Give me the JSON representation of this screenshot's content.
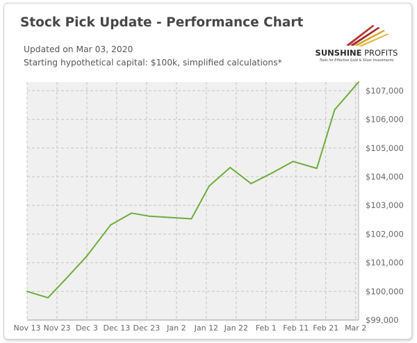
{
  "header": {
    "title": "Stock Pick Update - Performance Chart",
    "updated": "Updated on Mar 03, 2020",
    "capital_note": "Starting hypothetical capital: $100k, simplified calculations*"
  },
  "logo": {
    "brand_bold": "SUNSHINE",
    "brand_light": " PROFITS",
    "tagline": "Tools for Effective Gold & Silver Investments",
    "colors": {
      "red": "#a4282b",
      "gold": "#d8a31f",
      "dark": "#2a2a2a"
    }
  },
  "colors": {
    "line": "#6aad3b",
    "plot_bg": "#f0f0f0",
    "grid": "#c4c4c4",
    "tick_text": "#666666",
    "header_text": "#474747"
  },
  "chart_data": {
    "type": "line",
    "title": "",
    "xlabel": "",
    "ylabel": "",
    "grid": true,
    "y_axis_position": "right",
    "ylim": [
      99000,
      107300
    ],
    "y_ticks": [
      99000,
      100000,
      101000,
      102000,
      103000,
      104000,
      105000,
      106000,
      107000
    ],
    "y_tick_labels": [
      "$99,000",
      "$100,000",
      "$101,000",
      "$102,000",
      "$103,000",
      "$104,000",
      "$105,000",
      "$106,000",
      "$107,000"
    ],
    "xlim": [
      "2019-11-13",
      "2020-03-03"
    ],
    "x_ticks": [
      "2019-11-13",
      "2019-11-23",
      "2019-12-03",
      "2019-12-13",
      "2019-12-23",
      "2020-01-02",
      "2020-01-12",
      "2020-01-22",
      "2020-02-01",
      "2020-02-11",
      "2020-02-21",
      "2020-03-02"
    ],
    "x_tick_labels": [
      "Nov 13",
      "Nov 23",
      "Dec 3",
      "Dec 13",
      "Dec 23",
      "Jan 2",
      "Jan 12",
      "Jan 22",
      "Feb 1",
      "Feb 11",
      "Feb 21",
      "Mar 2"
    ],
    "series": [
      {
        "x": [
          "2019-11-13",
          "2019-11-20",
          "2019-11-26",
          "2019-12-03",
          "2019-12-11",
          "2019-12-18",
          "2019-12-24",
          "2020-01-07",
          "2020-01-13",
          "2020-01-20",
          "2020-01-27",
          "2020-02-03",
          "2020-02-10",
          "2020-02-18",
          "2020-02-24",
          "2020-03-03"
        ],
        "y": [
          100000,
          99780,
          100440,
          101230,
          102320,
          102730,
          102620,
          102530,
          103680,
          104320,
          103760,
          104130,
          104530,
          104290,
          106340,
          107300
        ]
      }
    ]
  }
}
